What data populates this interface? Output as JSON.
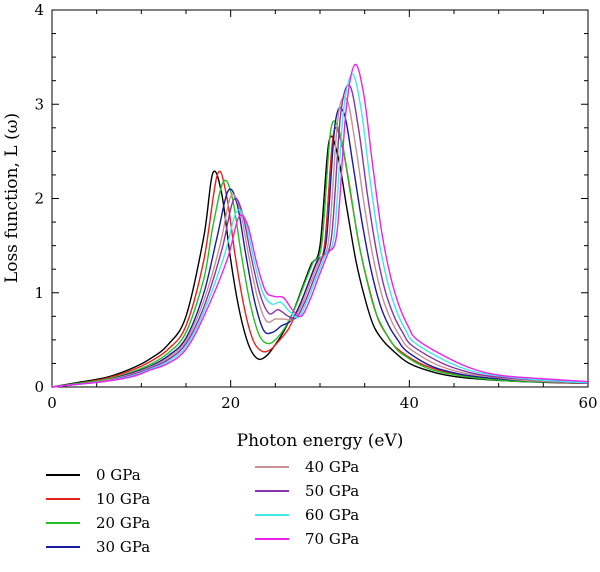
{
  "chart_data": {
    "type": "line",
    "title": "",
    "xlabel": "Photon energy (eV)",
    "ylabel": "Loss function, L (ω)",
    "xlim": [
      0,
      60
    ],
    "ylim": [
      0,
      4
    ],
    "xticks": [
      0,
      20,
      40,
      60
    ],
    "yticks": [
      0,
      1,
      2,
      3,
      4
    ],
    "grid": false,
    "legend_position": "bottom",
    "series": [
      {
        "name": "0 GPa",
        "color": "#000000",
        "x": [
          0,
          3,
          6,
          9,
          11,
          13,
          15,
          17,
          18,
          19,
          20,
          21,
          22,
          23,
          24,
          25,
          26,
          27,
          28,
          29,
          30,
          31,
          32,
          33,
          34,
          35,
          36,
          37,
          38,
          40,
          43,
          46,
          50,
          55,
          60
        ],
        "y": [
          0,
          0.05,
          0.1,
          0.2,
          0.3,
          0.45,
          0.75,
          1.6,
          2.27,
          2.05,
          1.35,
          0.8,
          0.45,
          0.3,
          0.33,
          0.45,
          0.6,
          0.8,
          1.05,
          1.3,
          1.5,
          2.6,
          2.45,
          1.9,
          1.35,
          0.95,
          0.65,
          0.5,
          0.4,
          0.25,
          0.15,
          0.1,
          0.07,
          0.05,
          0.04
        ]
      },
      {
        "name": "10 GPa",
        "color": "#e8201c",
        "x": [
          0,
          3,
          6,
          9,
          11,
          13,
          15,
          17,
          18.5,
          19.5,
          20.5,
          21.5,
          22.5,
          23.5,
          24.5,
          25.5,
          26.5,
          27.5,
          28.5,
          29.5,
          30.5,
          31.5,
          32.5,
          33.5,
          34.5,
          35.5,
          36.5,
          37.5,
          38.5,
          41,
          44,
          47,
          51,
          56,
          60
        ],
        "y": [
          0,
          0.04,
          0.09,
          0.18,
          0.27,
          0.4,
          0.65,
          1.35,
          2.25,
          2.05,
          1.4,
          0.85,
          0.5,
          0.38,
          0.4,
          0.5,
          0.62,
          0.82,
          1.05,
          1.3,
          1.5,
          2.68,
          2.55,
          2.0,
          1.45,
          1.05,
          0.72,
          0.55,
          0.42,
          0.26,
          0.16,
          0.11,
          0.07,
          0.05,
          0.04
        ]
      },
      {
        "name": "20 GPa",
        "color": "#22c022",
        "x": [
          0,
          3,
          6,
          9,
          11,
          13,
          15,
          17,
          18,
          19.2,
          20.2,
          21.2,
          22.2,
          23.2,
          24.2,
          25.2,
          26.2,
          27.2,
          28.2,
          29.2,
          30.2,
          31.2,
          32.2,
          33.2,
          34.2,
          35.2,
          36.2,
          37.2,
          38.2,
          39.2,
          42,
          45,
          48,
          52,
          57,
          60
        ],
        "y": [
          0,
          0.04,
          0.08,
          0.16,
          0.24,
          0.36,
          0.58,
          1.15,
          1.7,
          2.18,
          2.0,
          1.4,
          0.88,
          0.55,
          0.46,
          0.52,
          0.65,
          0.84,
          1.08,
          1.32,
          1.52,
          2.72,
          2.7,
          2.2,
          1.6,
          1.15,
          0.8,
          0.6,
          0.45,
          0.35,
          0.2,
          0.13,
          0.09,
          0.06,
          0.05,
          0.04
        ]
      },
      {
        "name": "30 GPa",
        "color": "#1a1aa0",
        "x": [
          0,
          3,
          6,
          9,
          11,
          13,
          15,
          17,
          18.5,
          19.7,
          20.7,
          21.7,
          22.7,
          23.7,
          24.7,
          25.7,
          26.7,
          27.7,
          28.7,
          29.7,
          30.7,
          31.7,
          32.7,
          33.7,
          34.7,
          35.7,
          36.7,
          37.7,
          38.7,
          39.7,
          42.5,
          45.5,
          48.5,
          52.5,
          57.5,
          60
        ],
        "y": [
          0,
          0.03,
          0.07,
          0.15,
          0.22,
          0.33,
          0.52,
          1.0,
          1.6,
          2.08,
          1.95,
          1.4,
          0.9,
          0.6,
          0.58,
          0.65,
          0.7,
          0.86,
          1.1,
          1.34,
          1.55,
          2.8,
          2.9,
          2.35,
          1.75,
          1.25,
          0.88,
          0.65,
          0.5,
          0.38,
          0.22,
          0.14,
          0.1,
          0.07,
          0.05,
          0.04
        ]
      },
      {
        "name": "40 GPa",
        "color": "#c89090",
        "x": [
          0,
          3,
          6,
          9,
          11,
          13,
          15,
          17,
          18.8,
          20.0,
          21.0,
          22.0,
          23.0,
          24.0,
          25.0,
          26.0,
          27.0,
          28.0,
          29.0,
          30.0,
          31.0,
          32.0,
          33.0,
          34.0,
          35.0,
          36.0,
          37.0,
          38.0,
          39.0,
          40.0,
          43,
          46,
          49,
          53,
          58,
          60
        ],
        "y": [
          0,
          0.03,
          0.07,
          0.14,
          0.21,
          0.31,
          0.49,
          0.92,
          1.5,
          2.02,
          1.9,
          1.4,
          0.95,
          0.7,
          0.72,
          0.72,
          0.72,
          0.88,
          1.12,
          1.36,
          1.58,
          2.85,
          3.05,
          2.55,
          1.9,
          1.35,
          0.95,
          0.7,
          0.53,
          0.41,
          0.24,
          0.15,
          0.11,
          0.07,
          0.05,
          0.04
        ]
      },
      {
        "name": "50 GPa",
        "color": "#8833aa",
        "x": [
          0,
          3,
          6,
          9,
          11,
          13,
          15,
          17,
          19,
          20.3,
          21.3,
          22.3,
          23.3,
          24.3,
          25.3,
          26.3,
          27.3,
          28.3,
          29.3,
          30.3,
          31.3,
          32.3,
          33.3,
          34.3,
          35.3,
          36.3,
          37.3,
          38.3,
          39.3,
          40.3,
          43.5,
          46.5,
          49.5,
          53.5,
          58.5,
          60
        ],
        "y": [
          0,
          0.03,
          0.06,
          0.13,
          0.2,
          0.29,
          0.46,
          0.85,
          1.45,
          1.98,
          1.85,
          1.38,
          0.98,
          0.78,
          0.82,
          0.76,
          0.73,
          0.9,
          1.14,
          1.38,
          1.6,
          2.88,
          3.2,
          2.75,
          2.05,
          1.45,
          1.02,
          0.75,
          0.57,
          0.44,
          0.26,
          0.16,
          0.11,
          0.08,
          0.05,
          0.04
        ]
      },
      {
        "name": "60 GPa",
        "color": "#40e8e8",
        "x": [
          0,
          3,
          6,
          9,
          11,
          13,
          15,
          17,
          19.3,
          20.6,
          21.6,
          22.6,
          23.6,
          24.6,
          25.6,
          26.6,
          27.6,
          28.6,
          29.6,
          30.6,
          31.6,
          32.6,
          33.6,
          34.6,
          35.6,
          36.6,
          37.6,
          38.6,
          39.6,
          40.6,
          44,
          47,
          50,
          54,
          59,
          60
        ],
        "y": [
          0,
          0.03,
          0.06,
          0.12,
          0.19,
          0.27,
          0.43,
          0.8,
          1.4,
          1.85,
          1.78,
          1.35,
          1.0,
          0.88,
          0.9,
          0.8,
          0.74,
          0.92,
          1.16,
          1.4,
          1.62,
          2.9,
          3.32,
          2.95,
          2.2,
          1.55,
          1.1,
          0.8,
          0.6,
          0.47,
          0.28,
          0.17,
          0.12,
          0.08,
          0.05,
          0.05
        ]
      },
      {
        "name": "70 GPa",
        "color": "#ee22ee",
        "x": [
          0,
          3,
          6,
          9,
          11,
          13,
          15,
          17,
          19.6,
          20.9,
          21.9,
          22.9,
          23.9,
          24.9,
          25.9,
          26.9,
          27.9,
          28.9,
          29.9,
          30.9,
          31.9,
          32.9,
          33.9,
          34.9,
          35.9,
          36.9,
          37.9,
          38.9,
          39.9,
          40.9,
          44.5,
          47.5,
          50.5,
          54.5,
          59.5,
          60
        ],
        "y": [
          0,
          0.03,
          0.06,
          0.11,
          0.18,
          0.25,
          0.4,
          0.75,
          1.35,
          1.8,
          1.72,
          1.32,
          1.02,
          0.96,
          0.95,
          0.82,
          0.75,
          0.93,
          1.18,
          1.42,
          1.64,
          2.92,
          3.42,
          3.1,
          2.35,
          1.65,
          1.17,
          0.85,
          0.64,
          0.5,
          0.3,
          0.18,
          0.12,
          0.09,
          0.06,
          0.05
        ]
      }
    ]
  }
}
